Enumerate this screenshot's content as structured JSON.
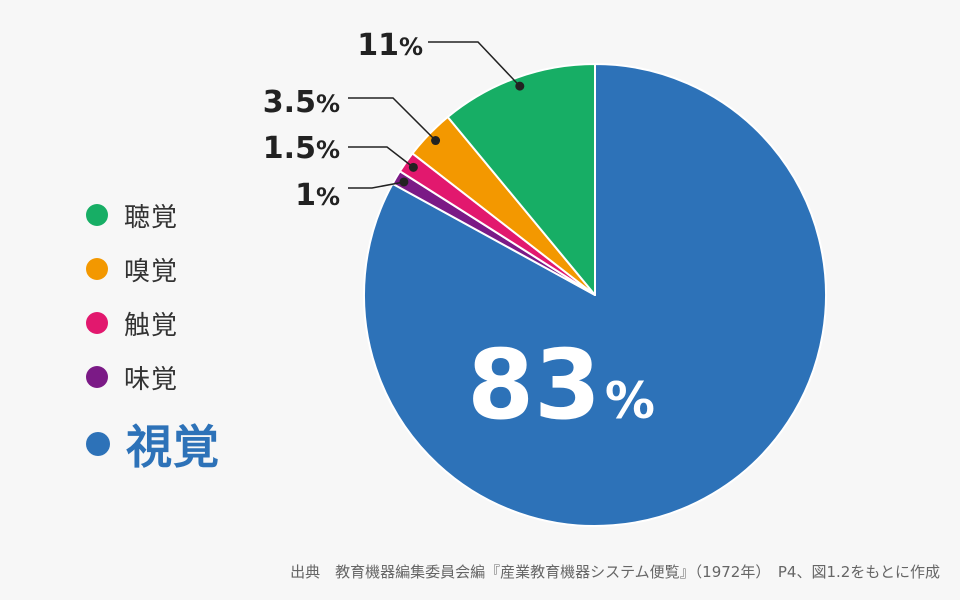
{
  "chart_data": {
    "type": "pie",
    "title": "",
    "slices": [
      {
        "label": "視覚",
        "value": 83,
        "value_label": "83%",
        "color": "#2d72b8"
      },
      {
        "label": "味覚",
        "value": 1,
        "value_label": "1%",
        "color": "#7b1a86"
      },
      {
        "label": "触覚",
        "value": 1.5,
        "value_label": "1.5%",
        "color": "#e2186e"
      },
      {
        "label": "嗅覚",
        "value": 3.5,
        "value_label": "3.5%",
        "color": "#f39800"
      },
      {
        "label": "聴覚",
        "value": 11,
        "value_label": "11%",
        "color": "#17ae65"
      }
    ],
    "legend_order": [
      "聴覚",
      "嗅覚",
      "触覚",
      "味覚",
      "視覚"
    ],
    "legend_placement": "left",
    "source": "出典　教育機器編集委員会編『産業教育機器システム便覧』（1972年）　P4、図1.2をもとに作成"
  },
  "colors": {
    "background": "#f7f7f7",
    "label_text": "#222222",
    "inner_label_text": "#ffffff",
    "leader_line": "#222222"
  }
}
